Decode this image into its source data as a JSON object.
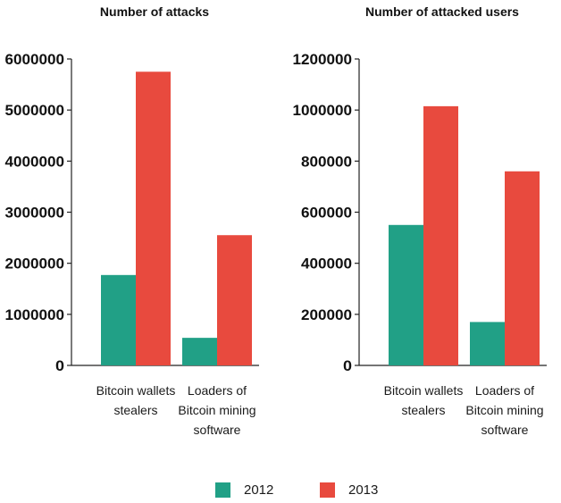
{
  "chart_data": [
    {
      "type": "bar",
      "title": "Number of attacks",
      "categories": [
        [
          "Bitcoin wallets",
          "stealers"
        ],
        [
          "Loaders of",
          "Bitcoin mining",
          "software"
        ]
      ],
      "series": [
        {
          "name": "2012",
          "values": [
            1770000,
            540000
          ]
        },
        {
          "name": "2013",
          "values": [
            5750000,
            2550000
          ]
        }
      ],
      "ylim": [
        0,
        6000000
      ],
      "yticks": [
        "0",
        "1000000",
        "2000000",
        "3000000",
        "4000000",
        "5000000",
        "6000000"
      ],
      "grid": false,
      "legend": "bottom"
    },
    {
      "type": "bar",
      "title": "Number of attacked users",
      "categories": [
        [
          "Bitcoin wallets",
          "stealers"
        ],
        [
          "Loaders of",
          "Bitcoin mining",
          "software"
        ]
      ],
      "series": [
        {
          "name": "2012",
          "values": [
            550000,
            170000
          ]
        },
        {
          "name": "2013",
          "values": [
            1015000,
            760000
          ]
        }
      ],
      "ylim": [
        0,
        1200000
      ],
      "yticks": [
        "0",
        "200000",
        "400000",
        "600000",
        "800000",
        "1000000",
        "1200000"
      ],
      "grid": false,
      "legend": "bottom"
    }
  ],
  "legend": [
    {
      "label": "2012",
      "color": "#21a086"
    },
    {
      "label": "2013",
      "color": "#e84a3e"
    }
  ]
}
